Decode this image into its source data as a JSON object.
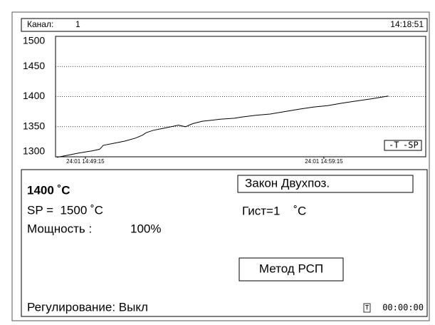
{
  "header": {
    "channel_label": "Канал:",
    "channel": "1",
    "time": "14:18:51"
  },
  "chart_data": {
    "type": "line",
    "x": [
      -1.2,
      -0.75,
      -0.3,
      0.3,
      0.6,
      0.75,
      1.2,
      1.65,
      2.1,
      2.4,
      2.55,
      2.85,
      3.3,
      3.6,
      3.9,
      4.2,
      4.5,
      4.9,
      5.35,
      5.65,
      6.25,
      6.55,
      7.15,
      7.75,
      8.35,
      8.95,
      9.55,
      10.15,
      10.75,
      11.35,
      11.95,
      12.7
    ],
    "series": [
      {
        "color": "#000000",
        "values": [
          1299,
          1302.5,
          1306,
          1310,
          1312.5,
          1319,
          1322.5,
          1326,
          1331,
          1336,
          1340,
          1344,
          1347.5,
          1350,
          1352.5,
          1350,
          1355,
          1359,
          1361,
          1362.5,
          1364,
          1366,
          1369,
          1371,
          1375,
          1379,
          1382.5,
          1385,
          1389,
          1392.5,
          1396,
          1401
        ]
      }
    ],
    "xlim": [
      -1.25,
      14.27
    ],
    "ylim": [
      1300,
      1500
    ],
    "xticks": [
      {
        "value": 0,
        "label": "24:01 14:49:15"
      },
      {
        "value": 10,
        "label": "24:01 14:59:15"
      }
    ],
    "yticks": [
      1300,
      1350,
      1400,
      1450,
      1500
    ],
    "grid": true,
    "legend": [
      "-T",
      "-SP"
    ]
  },
  "panel": {
    "temperature": "1400 ˚C",
    "law": "Закон Двухпоз.",
    "setpoint": "SP =  1500 ˚C",
    "hysteresis": "Гист=1    ˚C",
    "power_label": "Мощность :",
    "power": "100%",
    "method": "Метод РСП",
    "regulation": "Регулирование: Выкл",
    "timer_icon": "T",
    "timer": "00:00:00"
  }
}
